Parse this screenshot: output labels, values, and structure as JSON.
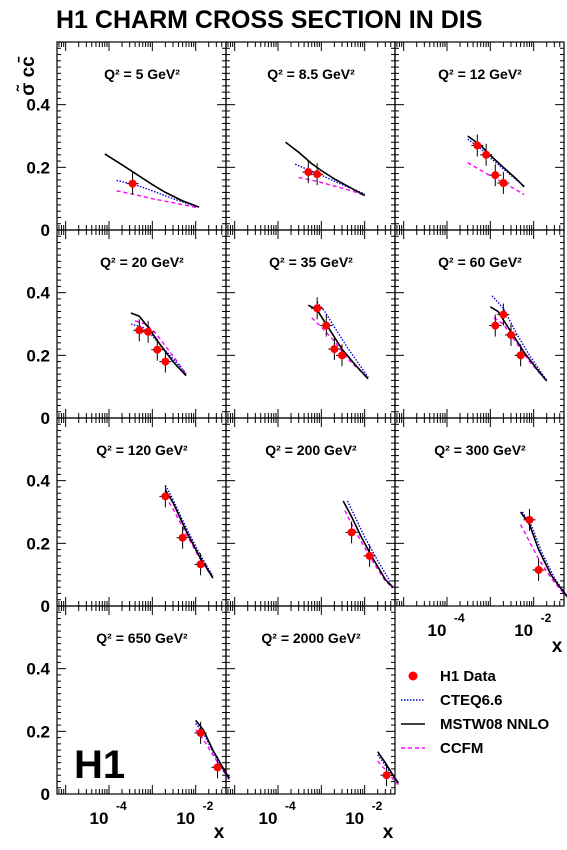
{
  "title": "H1 CHARM CROSS SECTION IN DIS",
  "y_axis_label": "σ̃ cc̄",
  "x_axis_label": "x",
  "logo": "H1",
  "colors": {
    "data": "#ff0000",
    "cteq": "#0000dd",
    "mstw": "#000000",
    "ccfm": "#ff00ff"
  },
  "legend": {
    "h1": "H1 Data",
    "cteq": "CTEQ6.6",
    "mstw": "MSTW08 NNLO",
    "ccfm": "CCFM"
  },
  "axis": {
    "ylim": [
      0,
      0.6
    ],
    "yticks": [
      "0",
      "0.2",
      "0.4"
    ],
    "xlim_log10": [
      -5.2,
      -1.3
    ],
    "xtick_base": "10",
    "xtick_exps": [
      "-4",
      "-2"
    ]
  },
  "chart_data": {
    "type": "scatter",
    "series_names": [
      "H1 Data",
      "CTEQ6.6",
      "MSTW08 NNLO",
      "CCFM"
    ],
    "panels": [
      {
        "q2": "5",
        "label": "Q² = 5 GeV²",
        "data": [
          {
            "x": 0.00035,
            "y": 0.148
          }
        ],
        "mstw": [
          [
            8e-05,
            0.243
          ],
          [
            0.0002,
            0.208
          ],
          [
            0.0005,
            0.172
          ],
          [
            0.001,
            0.145
          ],
          [
            0.002,
            0.12
          ],
          [
            0.005,
            0.093
          ],
          [
            0.012,
            0.073
          ]
        ],
        "cteq": [
          [
            0.00015,
            0.158
          ],
          [
            0.0004,
            0.145
          ],
          [
            0.001,
            0.125
          ],
          [
            0.003,
            0.1
          ],
          [
            0.008,
            0.08
          ],
          [
            0.012,
            0.073
          ]
        ],
        "ccfm": [
          [
            0.00015,
            0.125
          ],
          [
            0.0004,
            0.113
          ],
          [
            0.001,
            0.1
          ],
          [
            0.003,
            0.087
          ],
          [
            0.008,
            0.075
          ],
          [
            0.012,
            0.07
          ]
        ]
      },
      {
        "q2": "8.5",
        "label": "Q² = 8.5 GeV²",
        "data": [
          {
            "x": 0.0005,
            "y": 0.185
          },
          {
            "x": 0.0008,
            "y": 0.178
          }
        ],
        "mstw": [
          [
            0.00015,
            0.28
          ],
          [
            0.0003,
            0.248
          ],
          [
            0.0006,
            0.212
          ],
          [
            0.001,
            0.19
          ],
          [
            0.002,
            0.163
          ],
          [
            0.005,
            0.133
          ],
          [
            0.01,
            0.11
          ]
        ],
        "cteq": [
          [
            0.00025,
            0.21
          ],
          [
            0.0005,
            0.192
          ],
          [
            0.001,
            0.175
          ],
          [
            0.003,
            0.145
          ],
          [
            0.01,
            0.115
          ]
        ],
        "ccfm": [
          [
            0.0003,
            0.168
          ],
          [
            0.0008,
            0.155
          ],
          [
            0.002,
            0.14
          ],
          [
            0.005,
            0.125
          ],
          [
            0.01,
            0.11
          ]
        ]
      },
      {
        "q2": "12",
        "label": "Q² = 12 GeV²",
        "data": [
          {
            "x": 0.0005,
            "y": 0.27
          },
          {
            "x": 0.0008,
            "y": 0.24
          },
          {
            "x": 0.0013,
            "y": 0.175
          },
          {
            "x": 0.002,
            "y": 0.15
          }
        ],
        "mstw": [
          [
            0.0003,
            0.3
          ],
          [
            0.0006,
            0.27
          ],
          [
            0.001,
            0.238
          ],
          [
            0.002,
            0.2
          ],
          [
            0.004,
            0.163
          ],
          [
            0.006,
            0.138
          ]
        ],
        "cteq": [
          [
            0.0003,
            0.29
          ],
          [
            0.0006,
            0.26
          ],
          [
            0.001,
            0.23
          ],
          [
            0.002,
            0.195
          ],
          [
            0.004,
            0.16
          ],
          [
            0.006,
            0.14
          ]
        ],
        "ccfm": [
          [
            0.0003,
            0.215
          ],
          [
            0.0007,
            0.185
          ],
          [
            0.0015,
            0.16
          ],
          [
            0.003,
            0.138
          ],
          [
            0.006,
            0.113
          ]
        ]
      },
      {
        "q2": "20",
        "label": "Q² = 20 GeV²",
        "data": [
          {
            "x": 0.0005,
            "y": 0.28
          },
          {
            "x": 0.0008,
            "y": 0.275
          },
          {
            "x": 0.0013,
            "y": 0.218
          },
          {
            "x": 0.002,
            "y": 0.18
          }
        ],
        "mstw": [
          [
            0.00032,
            0.335
          ],
          [
            0.0005,
            0.325
          ],
          [
            0.0008,
            0.29
          ],
          [
            0.0015,
            0.235
          ],
          [
            0.003,
            0.18
          ],
          [
            0.006,
            0.135
          ]
        ],
        "cteq": [
          [
            0.00032,
            0.3
          ],
          [
            0.0006,
            0.29
          ],
          [
            0.001,
            0.262
          ],
          [
            0.002,
            0.215
          ],
          [
            0.004,
            0.17
          ],
          [
            0.006,
            0.14
          ]
        ],
        "ccfm": [
          [
            0.0004,
            0.31
          ],
          [
            0.0007,
            0.3
          ],
          [
            0.0012,
            0.27
          ],
          [
            0.002,
            0.23
          ],
          [
            0.004,
            0.175
          ],
          [
            0.006,
            0.14
          ]
        ]
      },
      {
        "q2": "35",
        "label": "Q² = 35 GeV²",
        "data": [
          {
            "x": 0.0008,
            "y": 0.35
          },
          {
            "x": 0.0013,
            "y": 0.295
          },
          {
            "x": 0.002,
            "y": 0.22
          },
          {
            "x": 0.003,
            "y": 0.2
          }
        ],
        "mstw": [
          [
            0.0005,
            0.36
          ],
          [
            0.0008,
            0.345
          ],
          [
            0.0015,
            0.285
          ],
          [
            0.003,
            0.22
          ],
          [
            0.006,
            0.17
          ],
          [
            0.012,
            0.125
          ]
        ],
        "cteq": [
          [
            0.0008,
            0.37
          ],
          [
            0.0012,
            0.34
          ],
          [
            0.002,
            0.29
          ],
          [
            0.004,
            0.225
          ],
          [
            0.008,
            0.165
          ],
          [
            0.012,
            0.13
          ]
        ],
        "ccfm": [
          [
            0.0006,
            0.32
          ],
          [
            0.001,
            0.29
          ],
          [
            0.002,
            0.245
          ],
          [
            0.004,
            0.19
          ],
          [
            0.008,
            0.15
          ],
          [
            0.012,
            0.125
          ]
        ]
      },
      {
        "q2": "60",
        "label": "Q² = 60 GeV²",
        "data": [
          {
            "x": 0.0013,
            "y": 0.295
          },
          {
            "x": 0.002,
            "y": 0.33
          },
          {
            "x": 0.003,
            "y": 0.265
          },
          {
            "x": 0.005,
            "y": 0.2
          }
        ],
        "mstw": [
          [
            0.001,
            0.355
          ],
          [
            0.0015,
            0.34
          ],
          [
            0.003,
            0.275
          ],
          [
            0.006,
            0.21
          ],
          [
            0.012,
            0.155
          ],
          [
            0.02,
            0.118
          ]
        ],
        "cteq": [
          [
            0.0011,
            0.39
          ],
          [
            0.002,
            0.35
          ],
          [
            0.004,
            0.27
          ],
          [
            0.008,
            0.2
          ],
          [
            0.02,
            0.12
          ]
        ],
        "ccfm": [
          [
            0.0012,
            0.32
          ],
          [
            0.002,
            0.3
          ],
          [
            0.004,
            0.24
          ],
          [
            0.008,
            0.18
          ],
          [
            0.02,
            0.118
          ]
        ]
      },
      {
        "q2": "120",
        "label": "Q² = 120 GeV²",
        "data": [
          {
            "x": 0.002,
            "y": 0.35
          },
          {
            "x": 0.005,
            "y": 0.218
          },
          {
            "x": 0.013,
            "y": 0.133
          }
        ],
        "mstw": [
          [
            0.002,
            0.37
          ],
          [
            0.003,
            0.33
          ],
          [
            0.006,
            0.24
          ],
          [
            0.012,
            0.16
          ],
          [
            0.025,
            0.09
          ]
        ],
        "cteq": [
          [
            0.002,
            0.385
          ],
          [
            0.003,
            0.34
          ],
          [
            0.006,
            0.25
          ],
          [
            0.012,
            0.17
          ],
          [
            0.025,
            0.095
          ]
        ],
        "ccfm": [
          [
            0.002,
            0.35
          ],
          [
            0.003,
            0.31
          ],
          [
            0.006,
            0.23
          ],
          [
            0.012,
            0.155
          ],
          [
            0.025,
            0.088
          ]
        ]
      },
      {
        "q2": "200",
        "label": "Q² = 200 GeV²",
        "data": [
          {
            "x": 0.005,
            "y": 0.235
          },
          {
            "x": 0.013,
            "y": 0.16
          }
        ],
        "mstw": [
          [
            0.0032,
            0.335
          ],
          [
            0.005,
            0.285
          ],
          [
            0.008,
            0.225
          ],
          [
            0.015,
            0.155
          ],
          [
            0.03,
            0.085
          ],
          [
            0.045,
            0.06
          ]
        ],
        "cteq": [
          [
            0.004,
            0.335
          ],
          [
            0.006,
            0.285
          ],
          [
            0.01,
            0.22
          ],
          [
            0.02,
            0.145
          ],
          [
            0.04,
            0.075
          ]
        ],
        "ccfm": [
          [
            0.0035,
            0.305
          ],
          [
            0.005,
            0.26
          ],
          [
            0.008,
            0.21
          ],
          [
            0.015,
            0.145
          ],
          [
            0.03,
            0.08
          ],
          [
            0.045,
            0.057
          ]
        ]
      },
      {
        "q2": "300",
        "label": "Q² = 300 GeV²",
        "data": [
          {
            "x": 0.008,
            "y": 0.275
          },
          {
            "x": 0.013,
            "y": 0.115
          }
        ],
        "mstw": [
          [
            0.005,
            0.3
          ],
          [
            0.008,
            0.26
          ],
          [
            0.013,
            0.18
          ],
          [
            0.025,
            0.1
          ],
          [
            0.04,
            0.06
          ],
          [
            0.06,
            0.03
          ]
        ],
        "cteq": [
          [
            0.0055,
            0.3
          ],
          [
            0.009,
            0.255
          ],
          [
            0.015,
            0.175
          ],
          [
            0.03,
            0.09
          ],
          [
            0.06,
            0.03
          ]
        ],
        "ccfm": [
          [
            0.005,
            0.26
          ],
          [
            0.008,
            0.205
          ],
          [
            0.013,
            0.15
          ],
          [
            0.025,
            0.09
          ],
          [
            0.04,
            0.055
          ],
          [
            0.06,
            0.028
          ]
        ]
      },
      {
        "q2": "650",
        "label": "Q² = 650 GeV²",
        "data": [
          {
            "x": 0.013,
            "y": 0.195
          },
          {
            "x": 0.032,
            "y": 0.085
          }
        ],
        "mstw": [
          [
            0.01,
            0.235
          ],
          [
            0.015,
            0.205
          ],
          [
            0.025,
            0.14
          ],
          [
            0.04,
            0.09
          ],
          [
            0.06,
            0.05
          ]
        ],
        "cteq": [
          [
            0.01,
            0.225
          ],
          [
            0.015,
            0.195
          ],
          [
            0.025,
            0.135
          ],
          [
            0.04,
            0.085
          ],
          [
            0.06,
            0.045
          ]
        ],
        "ccfm": [
          [
            0.01,
            0.205
          ],
          [
            0.015,
            0.175
          ],
          [
            0.025,
            0.125
          ],
          [
            0.04,
            0.08
          ],
          [
            0.06,
            0.045
          ]
        ]
      },
      {
        "q2": "2000",
        "label": "Q² = 2000 GeV²",
        "data": [
          {
            "x": 0.032,
            "y": 0.06
          }
        ],
        "mstw": [
          [
            0.02,
            0.135
          ],
          [
            0.03,
            0.1
          ],
          [
            0.045,
            0.06
          ],
          [
            0.06,
            0.035
          ]
        ],
        "cteq": [
          [
            0.02,
            0.125
          ],
          [
            0.03,
            0.092
          ],
          [
            0.045,
            0.055
          ],
          [
            0.06,
            0.033
          ]
        ],
        "ccfm": [
          [
            0.02,
            0.105
          ],
          [
            0.03,
            0.078
          ],
          [
            0.045,
            0.048
          ],
          [
            0.06,
            0.03
          ]
        ]
      }
    ]
  }
}
